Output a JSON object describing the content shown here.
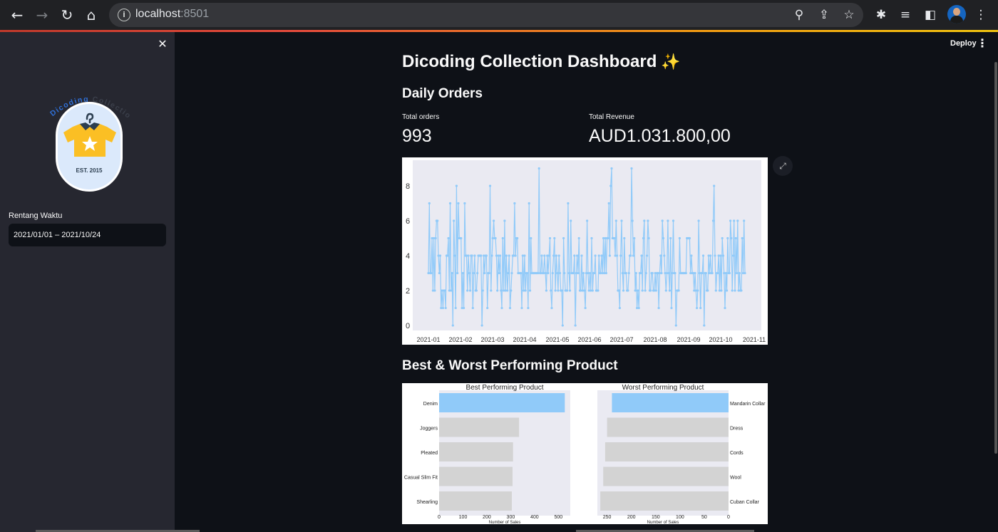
{
  "browser": {
    "url_host": "localhost",
    "url_port": ":8501"
  },
  "sidebar": {
    "logo": {
      "arc_text_1": "Dicoding",
      "arc_text_2": "Collection",
      "est_text": "EST. 2015"
    },
    "date_label": "Rentang Waktu",
    "date_value": "2021/01/01 – 2021/10/24"
  },
  "header": {
    "deploy_label": "Deploy"
  },
  "main": {
    "title": "Dicoding Collection Dashboard",
    "daily_orders_heading": "Daily Orders",
    "total_orders_label": "Total orders",
    "total_orders_value": "993",
    "total_revenue_label": "Total Revenue",
    "total_revenue_value": "AUD1.031.800,00",
    "product_heading": "Best & Worst Performing Product"
  },
  "colors": {
    "accent_blue": "#90caf9",
    "bar_gray": "#d3d3d3",
    "plot_bg": "#eaeaf2"
  },
  "chart_data": [
    {
      "type": "line",
      "title": "",
      "xlabel": "",
      "ylabel": "",
      "ylim": [
        0,
        9
      ],
      "yticks": [
        0,
        2,
        4,
        6,
        8
      ],
      "xticks": [
        "2021-01",
        "2021-02",
        "2021-03",
        "2021-04",
        "2021-05",
        "2021-06",
        "2021-07",
        "2021-08",
        "2021-09",
        "2021-10",
        "2021-11"
      ],
      "x_start": "2021-01-01",
      "x_end": "2021-10-24",
      "y": [
        3,
        7,
        3,
        3,
        5,
        2,
        5,
        2,
        5,
        6,
        6,
        4,
        3,
        4,
        1,
        2,
        1,
        2,
        2,
        1,
        4,
        4,
        5,
        2,
        7,
        2,
        3,
        0,
        6,
        4,
        1,
        8,
        3,
        7,
        5,
        5,
        5,
        1,
        3,
        1,
        7,
        4,
        4,
        2,
        4,
        3,
        2,
        4,
        4,
        1,
        3,
        4,
        2,
        2,
        3,
        4,
        4,
        4,
        4,
        0,
        2,
        4,
        3,
        4,
        4,
        1,
        3,
        3,
        8,
        2,
        4,
        5,
        6,
        5,
        5,
        4,
        2,
        4,
        3,
        4,
        2,
        1,
        5,
        2,
        6,
        2,
        4,
        2,
        3,
        4,
        1,
        2,
        3,
        4,
        4,
        7,
        4,
        5,
        5,
        3,
        3,
        3,
        3,
        1,
        4,
        2,
        4,
        2,
        3,
        3,
        1,
        7,
        2,
        5,
        3,
        3,
        3,
        3,
        3,
        3,
        3,
        3,
        9,
        3,
        3,
        4,
        3,
        3,
        4,
        3,
        2,
        4,
        3,
        4,
        5,
        2,
        1,
        3,
        4,
        5,
        2,
        4,
        3,
        2,
        4,
        3,
        2,
        2,
        0,
        5,
        3,
        2,
        2,
        2,
        7,
        3,
        2,
        6,
        3,
        3,
        3,
        4,
        0,
        3,
        4,
        3,
        5,
        2,
        2,
        4,
        2,
        3,
        2,
        1,
        3,
        6,
        3,
        2,
        3,
        2,
        5,
        2,
        3,
        3,
        4,
        2,
        2,
        2,
        4,
        3,
        3,
        4,
        3,
        5,
        3,
        5,
        3,
        5,
        5,
        7,
        4,
        8,
        9,
        5,
        5,
        5,
        4,
        6,
        4,
        2,
        2,
        1,
        4,
        6,
        3,
        2,
        5,
        3,
        3,
        2,
        2,
        3,
        4,
        4,
        9,
        6,
        4,
        5,
        2,
        3,
        1,
        2,
        1,
        3,
        3,
        4,
        2,
        5,
        6,
        2,
        3,
        4,
        6,
        5,
        2,
        2,
        3,
        3,
        2,
        2,
        3,
        2,
        3,
        3,
        1,
        3,
        4,
        3,
        6,
        5,
        4,
        3,
        2,
        3,
        6,
        3,
        2,
        5,
        1,
        3,
        6,
        3,
        3,
        0,
        2,
        2,
        2,
        5,
        3,
        3,
        3,
        3,
        3,
        3,
        3,
        5,
        5,
        5,
        5,
        3,
        4,
        3,
        3,
        2,
        3,
        2,
        1,
        2,
        6,
        3,
        1,
        3,
        3,
        4,
        0,
        3,
        3,
        2,
        2,
        4,
        3,
        4,
        3,
        3,
        6,
        8,
        4,
        2,
        3,
        3,
        4,
        2,
        4,
        2,
        5,
        4,
        3,
        1,
        3,
        2,
        5,
        3,
        3,
        6,
        5,
        2,
        4,
        6,
        2,
        5,
        3,
        6,
        2,
        3,
        2,
        2,
        5,
        3,
        6,
        3
      ]
    },
    {
      "type": "bar",
      "orientation": "horizontal",
      "title": "Best Performing Product",
      "xlabel": "Number of Sales",
      "ylabel": "",
      "categories": [
        "Denim",
        "Joggers",
        "Pleated",
        "Casual Slim Fit",
        "Shearling"
      ],
      "values": [
        527,
        335,
        310,
        308,
        305
      ],
      "xlim": [
        0,
        550
      ],
      "xticks": [
        0,
        100,
        200,
        300,
        400,
        500
      ]
    },
    {
      "type": "bar",
      "orientation": "horizontal",
      "inverted_x": true,
      "y_axis_side": "right",
      "title": "Worst Performing Product",
      "xlabel": "Number of Sales",
      "ylabel": "",
      "categories": [
        "Mandarin Collar",
        "Dress",
        "Cords",
        "Wool",
        "Cuban Collar"
      ],
      "values": [
        240,
        250,
        254,
        258,
        264
      ],
      "xlim": [
        270,
        0
      ],
      "xticks": [
        250,
        200,
        150,
        100,
        50,
        0
      ]
    }
  ]
}
